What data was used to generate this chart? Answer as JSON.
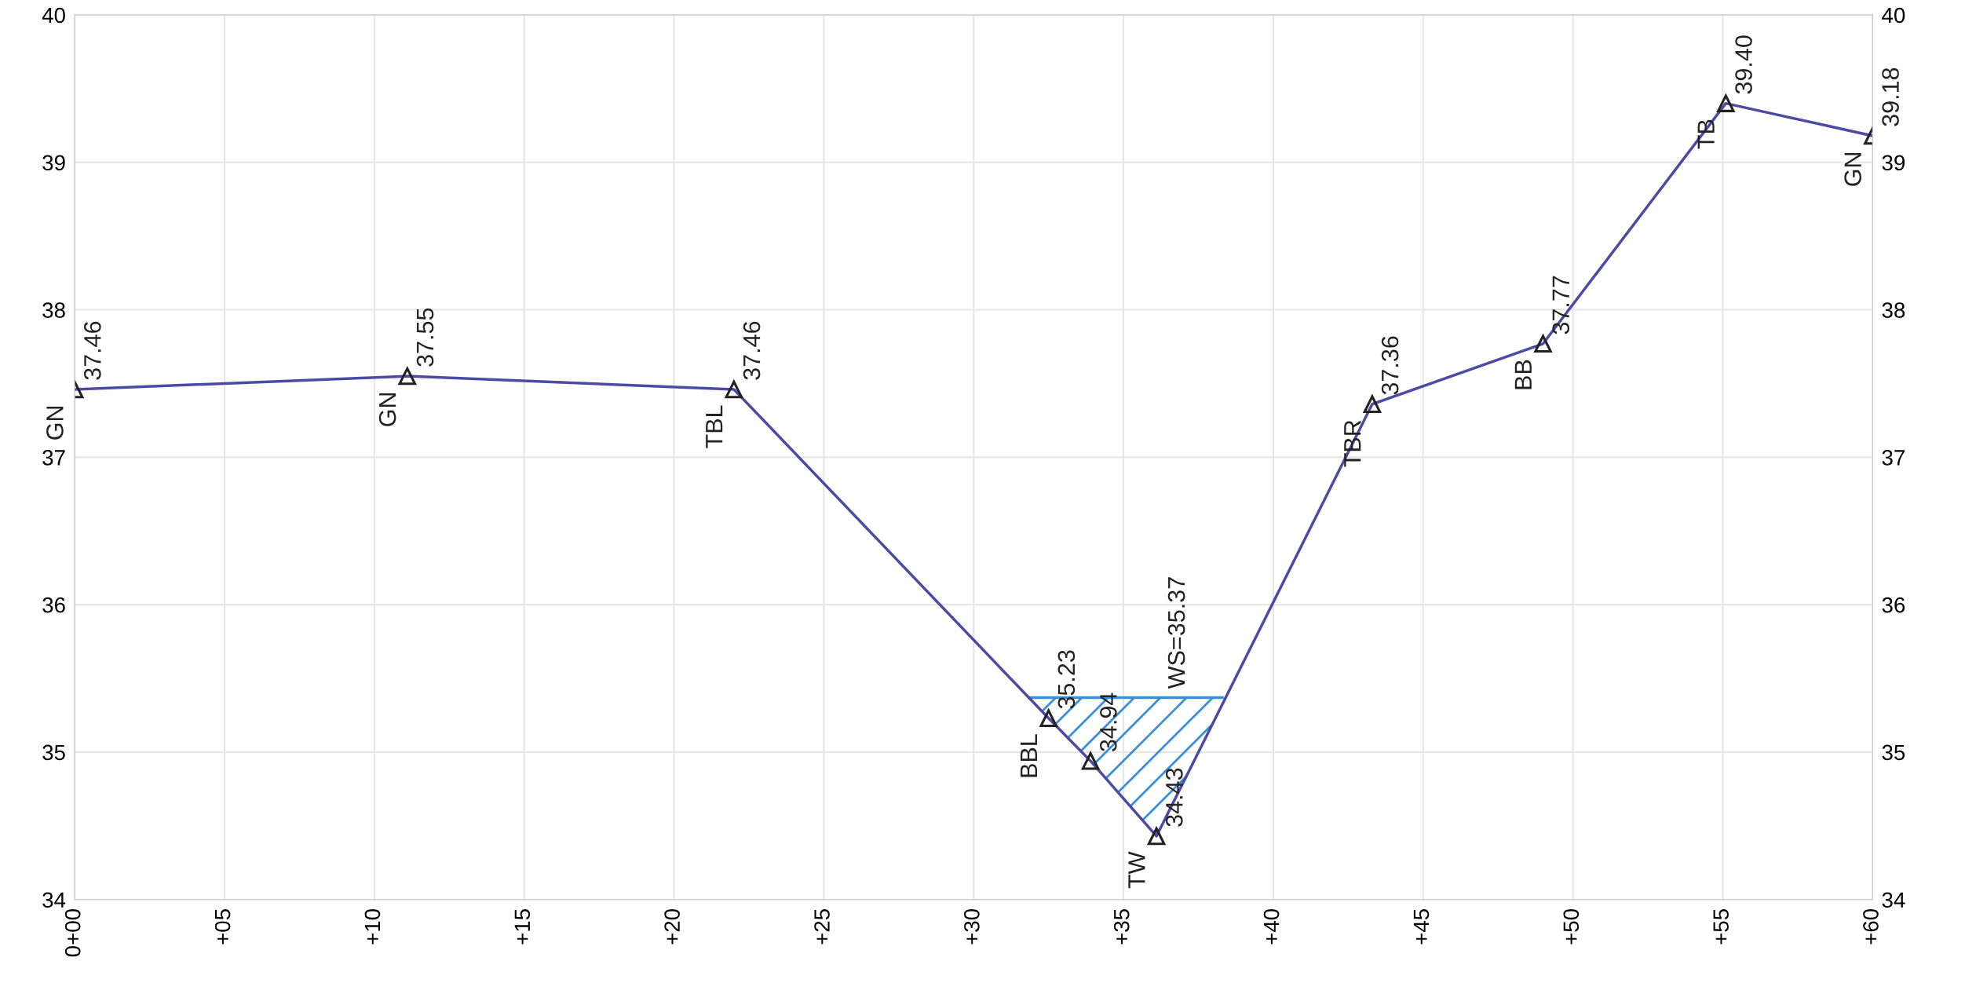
{
  "chart_data": {
    "type": "line",
    "x": [
      0,
      11.1,
      22.0,
      32.5,
      33.9,
      36.1,
      43.3,
      49.0,
      55.1,
      60.0
    ],
    "series": [
      {
        "color": "#4b4ba6",
        "marker": "triangle",
        "values": [
          37.46,
          37.55,
          37.46,
          35.23,
          34.94,
          34.43,
          37.36,
          37.77,
          39.4,
          39.18
        ],
        "value_labels": [
          "37.46",
          "37.55",
          "37.46",
          "35.23",
          "34.94",
          "34.43",
          "37.36",
          "37.77",
          "39.40",
          "39.18"
        ]
      },
      {
        "type": "area",
        "color": "#3a8fdc",
        "x": [
          31.85,
          32.5,
          33.9,
          36.1,
          38.3
        ],
        "values": [
          35.37,
          35.37,
          35.37,
          35.37,
          35.37
        ]
      }
    ],
    "annotations": [
      {
        "text": "GN",
        "x": 0,
        "y": 37.46
      },
      {
        "text": "GN",
        "x": 11.1,
        "y": 37.55
      },
      {
        "text": "TBL",
        "x": 22.0,
        "y": 37.46
      },
      {
        "text": "BBL",
        "x": 32.5,
        "y": 35.23
      },
      {
        "text": "TW",
        "x": 36.1,
        "y": 34.43
      },
      {
        "text": "TBR",
        "x": 43.3,
        "y": 37.36
      },
      {
        "text": "BB",
        "x": 49.0,
        "y": 37.77
      },
      {
        "text": "TB",
        "x": 55.1,
        "y": 39.4
      },
      {
        "text": "GN",
        "x": 60.0,
        "y": 39.18
      },
      {
        "text": "WS=35.37",
        "x": 36.1,
        "y": 35.37
      }
    ],
    "xlim": [
      0,
      60
    ],
    "xticks": [
      {
        "value": 0,
        "label": "0+00"
      },
      {
        "value": 5,
        "label": "+05"
      },
      {
        "value": 10,
        "label": "+10"
      },
      {
        "value": 15,
        "label": "+15"
      },
      {
        "value": 20,
        "label": "+20"
      },
      {
        "value": 25,
        "label": "+25"
      },
      {
        "value": 30,
        "label": "+30"
      },
      {
        "value": 35,
        "label": "+35"
      },
      {
        "value": 40,
        "label": "+40"
      },
      {
        "value": 45,
        "label": "+45"
      },
      {
        "value": 50,
        "label": "+50"
      },
      {
        "value": 55,
        "label": "+55"
      },
      {
        "value": 60,
        "label": "+60"
      }
    ],
    "ylim": [
      34,
      40
    ],
    "yticks": [
      34,
      35,
      36,
      37,
      38,
      39,
      40
    ],
    "y2lim": [
      34,
      40
    ],
    "y2ticks": [
      34,
      35,
      36,
      37,
      38,
      39,
      40
    ],
    "grid": true
  }
}
